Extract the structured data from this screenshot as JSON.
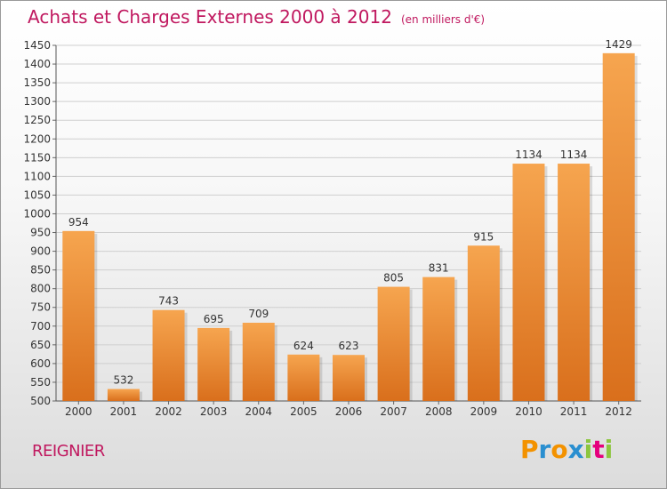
{
  "title": "Achats et Charges Externes 2000 à 2012",
  "subtitle": "(en milliers d'€)",
  "commune": "REIGNIER",
  "logo": {
    "text": "Proxiti",
    "letters": [
      {
        "ch": "P",
        "color": "#f39200"
      },
      {
        "ch": "r",
        "color": "#2a8fd0"
      },
      {
        "ch": "o",
        "color": "#f39200"
      },
      {
        "ch": "x",
        "color": "#2a8fd0"
      },
      {
        "ch": "i",
        "color": "#8cc63f"
      },
      {
        "ch": "t",
        "color": "#e5007d"
      },
      {
        "ch": "i",
        "color": "#8cc63f"
      }
    ]
  },
  "colors": {
    "bar_top": "#f6a54f",
    "bar_bottom": "#d96f1c",
    "title": "#c0185f",
    "grid": "#cfcfcf"
  },
  "chart_data": {
    "type": "bar",
    "categories": [
      "2000",
      "2001",
      "2002",
      "2003",
      "2004",
      "2005",
      "2006",
      "2007",
      "2008",
      "2009",
      "2010",
      "2011",
      "2012"
    ],
    "values": [
      954,
      532,
      743,
      695,
      709,
      624,
      623,
      805,
      831,
      915,
      1134,
      1134,
      1429
    ],
    "data_labels": [
      "954",
      "532",
      "743",
      "695",
      "709",
      "624",
      "623",
      "805",
      "831",
      "915",
      "1134",
      "1134",
      "1429"
    ],
    "ylim": [
      500,
      1450
    ],
    "yticks": [
      500,
      550,
      600,
      650,
      700,
      750,
      800,
      850,
      900,
      950,
      1000,
      1050,
      1100,
      1150,
      1200,
      1250,
      1300,
      1350,
      1400,
      1450
    ],
    "grid": true,
    "xlabel": "",
    "ylabel": ""
  }
}
